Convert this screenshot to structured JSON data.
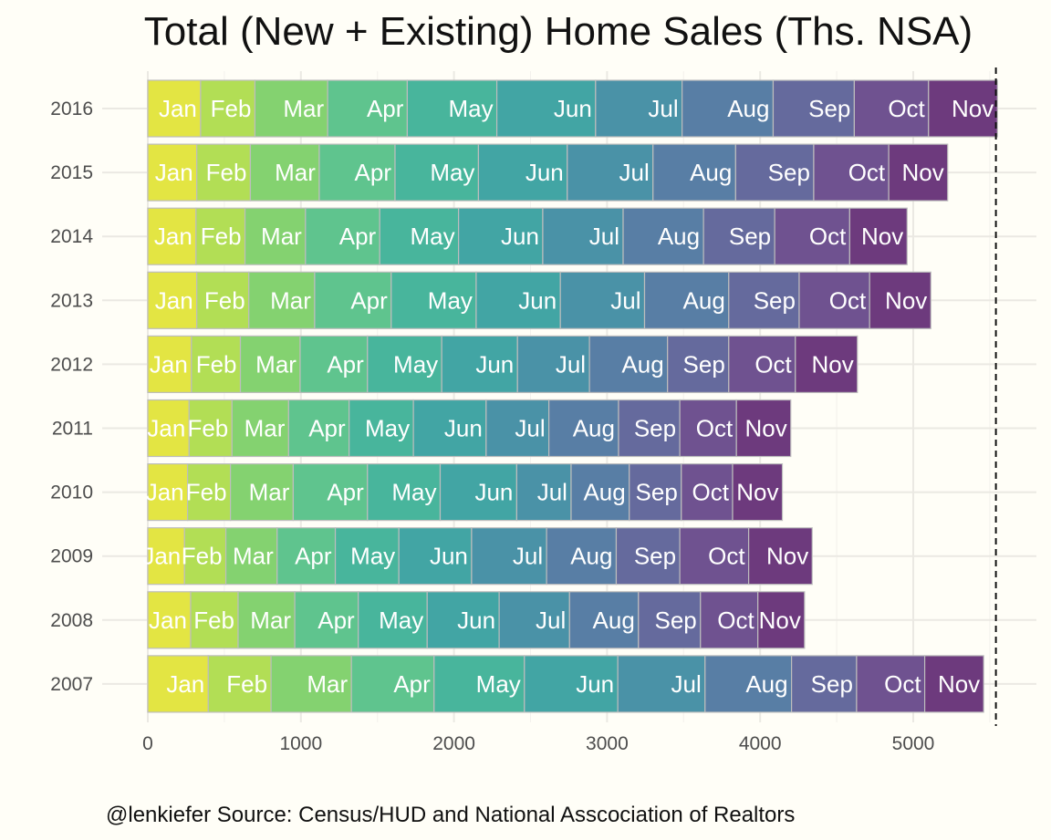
{
  "chart_data": {
    "type": "bar",
    "orientation": "horizontal",
    "stacked": true,
    "title": "Total (New + Existing) Home Sales (Ths. NSA)",
    "caption": "@lenkiefer Source: Census/HUD and National Asscociation of Realtors",
    "xlim": [
      0,
      5600
    ],
    "x_ticks": [
      0,
      1000,
      2000,
      3000,
      4000,
      5000
    ],
    "grid": true,
    "legend": "none",
    "reference_line": {
      "x": 5540,
      "style": "dashed"
    },
    "years": [
      "2007",
      "2008",
      "2009",
      "2010",
      "2011",
      "2012",
      "2013",
      "2014",
      "2015",
      "2016"
    ],
    "months": [
      "Jan",
      "Feb",
      "Mar",
      "Apr",
      "May",
      "Jun",
      "Jul",
      "Aug",
      "Sep",
      "Oct",
      "Nov"
    ],
    "colors": [
      "#e3e543",
      "#b2de55",
      "#84d270",
      "#5fc48e",
      "#48b59c",
      "#42a5a4",
      "#4a92a7",
      "#587ea5",
      "#656a9d",
      "#6f5290",
      "#6d3a7d"
    ],
    "values": {
      "2007": [
        395,
        410,
        525,
        540,
        590,
        610,
        570,
        565,
        425,
        445,
        385
      ],
      "2008": [
        280,
        310,
        370,
        415,
        450,
        470,
        460,
        450,
        405,
        375,
        305
      ],
      "2009": [
        240,
        270,
        335,
        380,
        415,
        475,
        490,
        455,
        415,
        450,
        415
      ],
      "2010": [
        260,
        280,
        410,
        485,
        475,
        500,
        355,
        380,
        340,
        335,
        325
      ],
      "2011": [
        270,
        280,
        370,
        395,
        420,
        475,
        410,
        455,
        400,
        370,
        355
      ],
      "2012": [
        285,
        320,
        390,
        440,
        485,
        495,
        470,
        510,
        400,
        435,
        405
      ],
      "2013": [
        320,
        340,
        430,
        500,
        555,
        550,
        550,
        550,
        460,
        460,
        400
      ],
      "2014": [
        315,
        320,
        395,
        485,
        515,
        550,
        525,
        525,
        465,
        490,
        375
      ],
      "2015": [
        320,
        350,
        450,
        495,
        545,
        580,
        560,
        540,
        510,
        490,
        385
      ],
      "2016": [
        345,
        355,
        475,
        520,
        585,
        645,
        565,
        595,
        530,
        485,
        450
      ]
    }
  }
}
